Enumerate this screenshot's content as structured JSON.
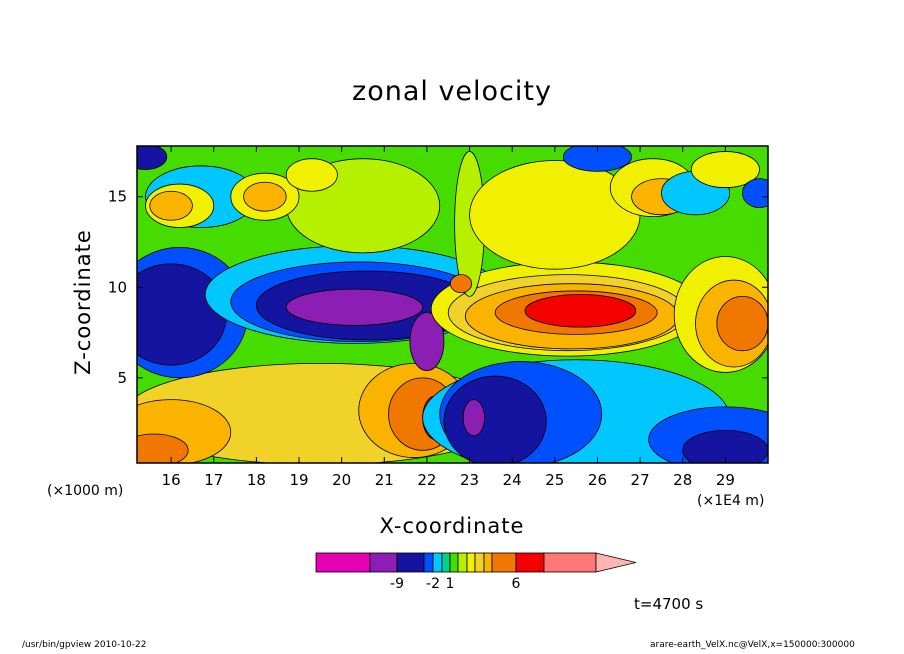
{
  "chart_data": {
    "type": "heatmap",
    "title": "zonal velocity",
    "xlabel": "X-coordinate",
    "ylabel": "Z-coordinate",
    "x_unit_label": "(×1E4 m)",
    "y_unit_label": "(×1000 m)",
    "xlim": [
      15.2,
      30.0
    ],
    "ylim": [
      0.3,
      17.8
    ],
    "x_ticks": [
      "16",
      "17",
      "18",
      "19",
      "20",
      "21",
      "22",
      "23",
      "24",
      "25",
      "26",
      "27",
      "28",
      "29"
    ],
    "y_ticks": [
      "5",
      "10",
      "15"
    ],
    "colorbar": {
      "colors": [
        "#e600b4",
        "#8c1eb4",
        "#1414a0",
        "#0050ff",
        "#00c8ff",
        "#00d28c",
        "#46dc00",
        "#b4f000",
        "#f0f000",
        "#f0d228",
        "#fab400",
        "#f07800",
        "#f50000",
        "#ff7878",
        "#ffb4b4"
      ],
      "tick_labels": [
        "-9",
        "-2",
        "1",
        "6"
      ]
    },
    "time_label": "t=4700 s"
  },
  "footer": {
    "left": "/usr/bin/gpview  2010-10-22",
    "right": "arare-earth_VelX.nc@VelX,x=150000:300000"
  }
}
